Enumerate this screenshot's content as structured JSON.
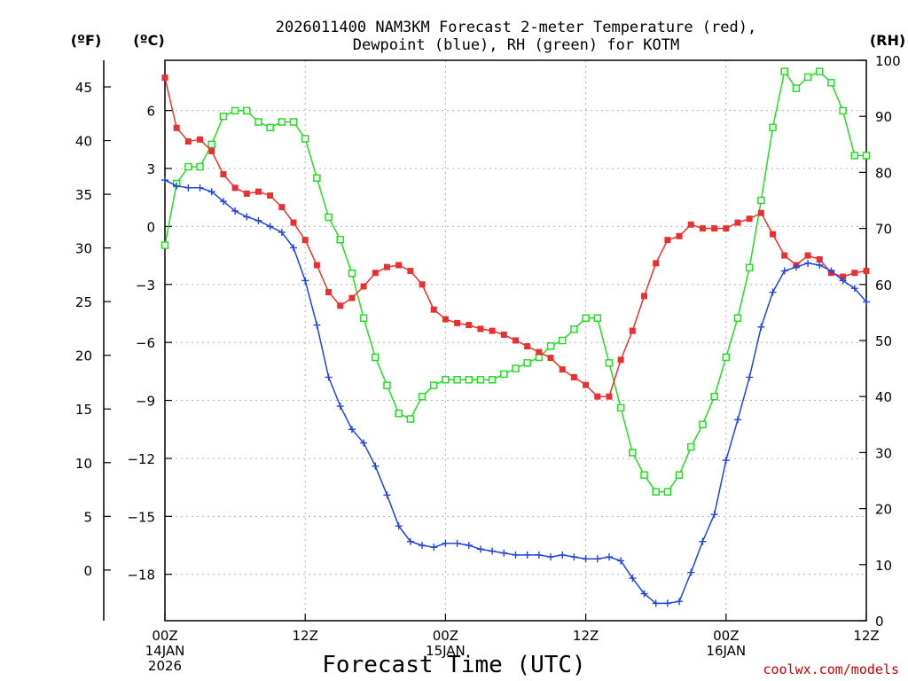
{
  "chart_data": {
    "type": "line",
    "title": [
      "2026011400 NAM3KM Forecast 2-meter Temperature (red),",
      "Dewpoint (blue), RH (green) for KOTM"
    ],
    "units": {
      "f": "(ºF)",
      "c": "(ºC)",
      "rh": "(RH)"
    },
    "xlabel": "Forecast Time (UTC)",
    "credit": "coolwx.com/models",
    "xlim": [
      0,
      60
    ],
    "ylim_c": [
      -20.4,
      8.6
    ],
    "ylim_rh": [
      0,
      100
    ],
    "x_ticks": [
      {
        "x": 0,
        "labels": [
          "00Z",
          "14JAN",
          "2026"
        ]
      },
      {
        "x": 12,
        "labels": [
          "12Z"
        ]
      },
      {
        "x": 24,
        "labels": [
          "00Z",
          "15JAN"
        ]
      },
      {
        "x": 36,
        "labels": [
          "12Z"
        ]
      },
      {
        "x": 48,
        "labels": [
          "00Z",
          "16JAN"
        ]
      },
      {
        "x": 60,
        "labels": [
          "12Z"
        ]
      }
    ],
    "y_ticks_c": [
      {
        "v": 6,
        "label": "6"
      },
      {
        "v": 3,
        "label": "3"
      },
      {
        "v": 0,
        "label": "0"
      },
      {
        "v": -3,
        "label": "−3"
      },
      {
        "v": -6,
        "label": "−6"
      },
      {
        "v": -9,
        "label": "−9"
      },
      {
        "v": -12,
        "label": "−12"
      },
      {
        "v": -15,
        "label": "−15"
      },
      {
        "v": -18,
        "label": "−18"
      }
    ],
    "y_ticks_f": [
      {
        "v": 45,
        "label": "45"
      },
      {
        "v": 40,
        "label": "40"
      },
      {
        "v": 35,
        "label": "35"
      },
      {
        "v": 30,
        "label": "30"
      },
      {
        "v": 25,
        "label": "25"
      },
      {
        "v": 20,
        "label": "20"
      },
      {
        "v": 15,
        "label": "15"
      },
      {
        "v": 10,
        "label": "10"
      },
      {
        "v": 5,
        "label": "5"
      },
      {
        "v": 0,
        "label": "0"
      }
    ],
    "y_ticks_rh": [
      {
        "v": 100,
        "label": "100"
      },
      {
        "v": 90,
        "label": "90"
      },
      {
        "v": 80,
        "label": "80"
      },
      {
        "v": 70,
        "label": "70"
      },
      {
        "v": 60,
        "label": "60"
      },
      {
        "v": 50,
        "label": "50"
      },
      {
        "v": 40,
        "label": "40"
      },
      {
        "v": 30,
        "label": "30"
      },
      {
        "v": 20,
        "label": "20"
      },
      {
        "v": 10,
        "label": "10"
      },
      {
        "v": 0,
        "label": "0"
      }
    ],
    "x": [
      0,
      1,
      2,
      3,
      4,
      5,
      6,
      7,
      8,
      9,
      10,
      11,
      12,
      13,
      14,
      15,
      16,
      17,
      18,
      19,
      20,
      21,
      22,
      23,
      24,
      25,
      26,
      27,
      28,
      29,
      30,
      31,
      32,
      33,
      34,
      35,
      36,
      37,
      38,
      39,
      40,
      41,
      42,
      43,
      44,
      45,
      46,
      47,
      48,
      49,
      50,
      51,
      52,
      53,
      54,
      55,
      56,
      57,
      58,
      59,
      60
    ],
    "series": [
      {
        "name": "Temperature",
        "color": "#e83030",
        "marker": "filled-square",
        "values": [
          7.7,
          5.1,
          4.4,
          4.5,
          3.9,
          2.7,
          2.0,
          1.7,
          1.8,
          1.6,
          1.0,
          0.2,
          -0.7,
          -2.0,
          -3.4,
          -4.1,
          -3.7,
          -3.1,
          -2.4,
          -2.1,
          -2.0,
          -2.3,
          -3.0,
          -4.3,
          -4.8,
          -5.0,
          -5.1,
          -5.3,
          -5.4,
          -5.6,
          -5.9,
          -6.2,
          -6.5,
          -6.8,
          -7.4,
          -7.8,
          -8.2,
          -8.8,
          -8.8,
          -6.9,
          -5.4,
          -3.6,
          -1.9,
          -0.7,
          -0.5,
          0.1,
          -0.1,
          -0.1,
          -0.1,
          0.2,
          0.4,
          0.7,
          -0.4,
          -1.5,
          -2.0,
          -1.5,
          -1.7,
          -2.4,
          -2.6,
          -2.4,
          -2.3
        ]
      },
      {
        "name": "Dewpoint",
        "color": "#2244dd",
        "marker": "plus",
        "values": [
          2.4,
          2.1,
          2.0,
          2.0,
          1.8,
          1.3,
          0.8,
          0.5,
          0.3,
          0.0,
          -0.3,
          -1.1,
          -2.8,
          -5.1,
          -7.8,
          -9.3,
          -10.5,
          -11.2,
          -12.4,
          -13.9,
          -15.5,
          -16.3,
          -16.5,
          -16.6,
          -16.4,
          -16.4,
          -16.5,
          -16.7,
          -16.8,
          -16.9,
          -17.0,
          -17.0,
          -17.0,
          -17.1,
          -17.0,
          -17.1,
          -17.2,
          -17.2,
          -17.1,
          -17.3,
          -18.2,
          -19.0,
          -19.5,
          -19.5,
          -19.4,
          -17.9,
          -16.3,
          -14.9,
          -12.1,
          -10.0,
          -7.8,
          -5.2,
          -3.4,
          -2.3,
          -2.1,
          -1.9,
          -2.0,
          -2.3,
          -2.8,
          -3.2,
          -3.9
        ]
      },
      {
        "name": "RH",
        "color": "#22dd22",
        "marker": "open-square",
        "axis": "rh",
        "values": [
          67,
          78,
          81,
          81,
          85,
          90,
          91,
          91,
          89,
          88,
          89,
          89,
          86,
          79,
          72,
          68,
          62,
          54,
          47,
          42,
          37,
          36,
          40,
          42,
          43,
          43,
          43,
          43,
          43,
          44,
          45,
          46,
          47,
          49,
          50,
          52,
          54,
          54,
          46,
          38,
          30,
          26,
          23,
          23,
          26,
          31,
          35,
          40,
          47,
          54,
          63,
          75,
          88,
          98,
          95,
          97,
          98,
          96,
          91,
          83,
          83
        ]
      }
    ]
  }
}
